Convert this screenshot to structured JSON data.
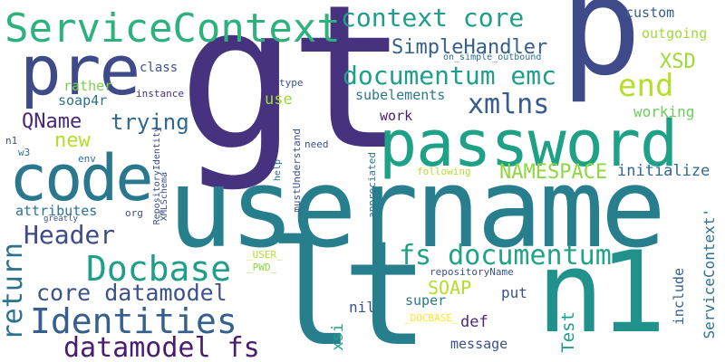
{
  "words": [
    {
      "text": "gt",
      "color": "#46327e"
    },
    {
      "text": "p",
      "color": "#3e4a89"
    },
    {
      "text": "username",
      "color": "#277f8e"
    },
    {
      "text": "lt",
      "color": "#277f8e"
    },
    {
      "text": "n1",
      "color": "#21918c"
    },
    {
      "text": "password",
      "color": "#1fa187"
    },
    {
      "text": "ServiceContext",
      "color": "#2db27d"
    },
    {
      "text": "pre",
      "color": "#3e4a89"
    },
    {
      "text": "code",
      "color": "#2a788e"
    },
    {
      "text": "context core",
      "color": "#1f9e89"
    },
    {
      "text": "documentum emc",
      "color": "#1f9e89"
    },
    {
      "text": "Identities",
      "color": "#355f8d"
    },
    {
      "text": "Docbase",
      "color": "#1f9e89"
    },
    {
      "text": "datamodel fs",
      "color": "#481d6f"
    },
    {
      "text": "fs documentum",
      "color": "#20a386"
    },
    {
      "text": "core datamodel",
      "color": "#3b528b"
    },
    {
      "text": "Header",
      "color": "#3e4a89"
    },
    {
      "text": "xmlns",
      "color": "#365c8d"
    },
    {
      "text": "end",
      "color": "#b5de2b"
    },
    {
      "text": "XSD",
      "color": "#a0da39"
    },
    {
      "text": "SimpleHandler",
      "color": "#355f8d"
    },
    {
      "text": "NAMESPACE",
      "color": "#8fd744"
    },
    {
      "text": "return",
      "color": "#2c728e"
    },
    {
      "text": "trying",
      "color": "#31688e"
    },
    {
      "text": "QName",
      "color": "#482878"
    },
    {
      "text": "new",
      "color": "#b5de2b"
    },
    {
      "text": "custom",
      "color": "#355f8d"
    },
    {
      "text": "outgoing",
      "color": "#a0da39"
    },
    {
      "text": "working",
      "color": "#6ccd5a"
    },
    {
      "text": "class",
      "color": "#3b528b"
    },
    {
      "text": "rather",
      "color": "#7ad151"
    },
    {
      "text": "soap4r",
      "color": "#2c728e"
    },
    {
      "text": "instance",
      "color": "#46327e"
    },
    {
      "text": "subelements",
      "color": "#2a788e"
    },
    {
      "text": "work",
      "color": "#481d6f"
    },
    {
      "text": "type",
      "color": "#3b528b"
    },
    {
      "text": "use",
      "color": "#a0da39"
    },
    {
      "text": "on_simple_outbound",
      "color": "#2c728e"
    },
    {
      "text": "initialize",
      "color": "#31688e"
    },
    {
      "text": "attributes",
      "color": "#2c728e"
    },
    {
      "text": "org",
      "color": "#3b528b"
    },
    {
      "text": "greatly",
      "color": "#3b528b"
    },
    {
      "text": "need",
      "color": "#3b528b"
    },
    {
      "text": "env",
      "color": "#2c728e"
    },
    {
      "text": "n1",
      "color": "#3b528b"
    },
    {
      "text": "w3",
      "color": "#2c728e"
    },
    {
      "text": "SOAP",
      "color": "#b5de2b"
    },
    {
      "text": "super",
      "color": "#2a788e"
    },
    {
      "text": "put",
      "color": "#3b528b"
    },
    {
      "text": "def",
      "color": "#482878"
    },
    {
      "text": "nil",
      "color": "#3b528b"
    },
    {
      "text": "xsi",
      "color": "#20a386"
    },
    {
      "text": "message",
      "color": "#3b528b"
    },
    {
      "text": "Test",
      "color": "#1fa187"
    },
    {
      "text": "include",
      "color": "#355f8d"
    },
    {
      "text": "ServiceContext'",
      "color": "#2c728e"
    },
    {
      "text": "following",
      "color": "#b5de2b"
    },
    {
      "text": "repositoryName",
      "color": "#3b528b"
    },
    {
      "text": "_USER_",
      "color": "#b5de2b"
    },
    {
      "text": "_PWD_",
      "color": "#8fd744"
    },
    {
      "text": "_DOCBASE_",
      "color": "#fde725"
    },
    {
      "text": "RepositoryIdentity",
      "color": "#3e4a89"
    },
    {
      "text": "XMLSchema",
      "color": "#3b528b"
    },
    {
      "text": "mustUnderstand",
      "color": "#3b528b"
    },
    {
      "text": "appreciated",
      "color": "#2a788e"
    },
    {
      "text": "help",
      "color": "#2c728e"
    }
  ]
}
